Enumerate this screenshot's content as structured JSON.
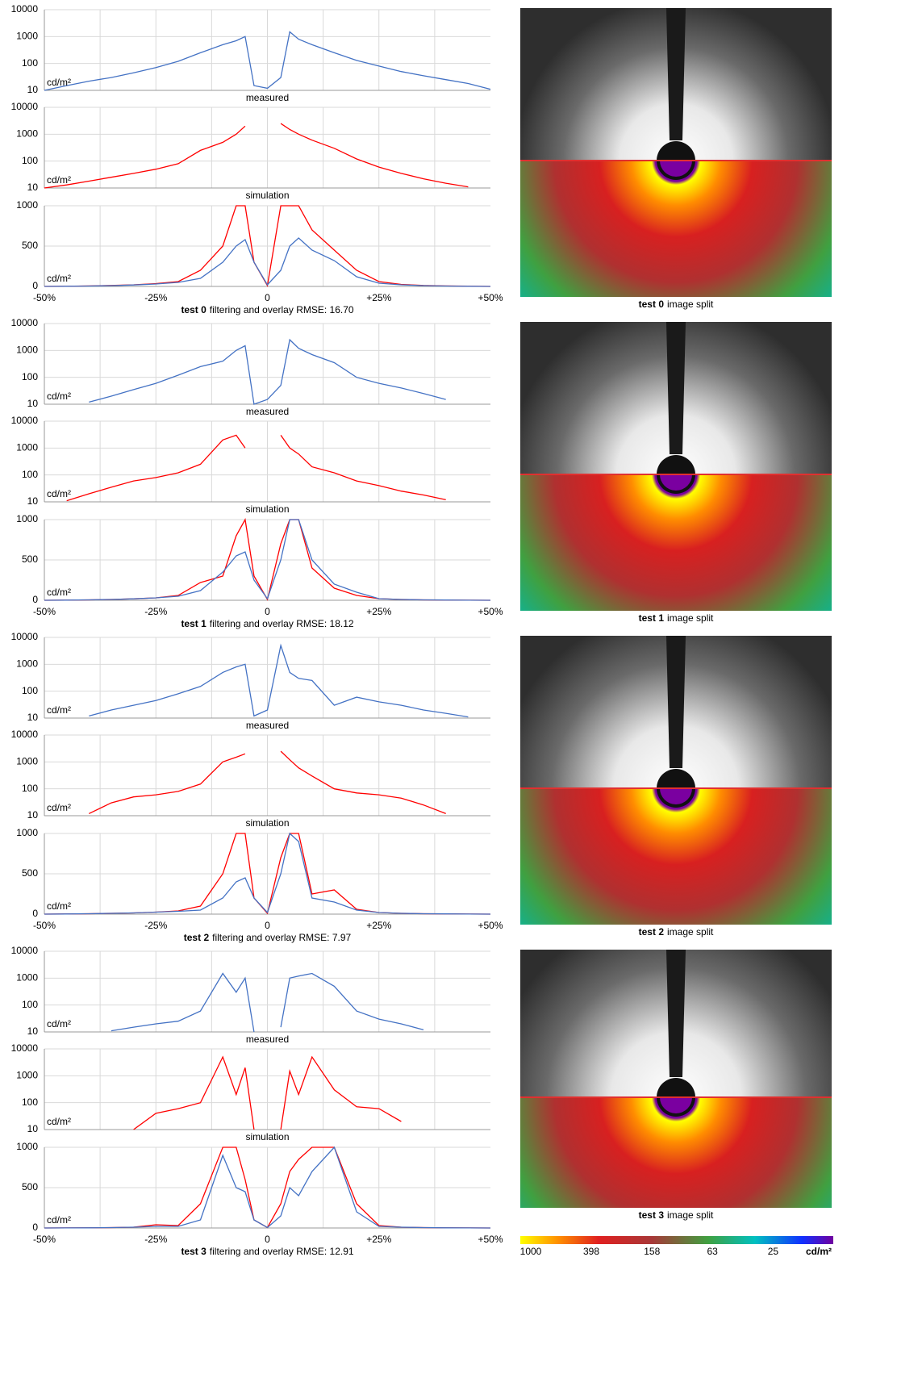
{
  "chart_data": [
    {
      "type": "line",
      "log": true,
      "grid": true,
      "xlabel": "measured",
      "ylabel": "cd/m²",
      "xlim": [
        -50,
        50
      ],
      "ylim": [
        10,
        10000
      ],
      "yticks": [
        10,
        100,
        1000,
        10000
      ],
      "xgrid": [
        -37.5,
        -25,
        -12.5,
        0,
        12.5,
        25,
        37.5
      ],
      "x": [
        -50,
        -45,
        -40,
        -35,
        -30,
        -25,
        -20,
        -15,
        -10,
        -7,
        -5,
        -3,
        0,
        3,
        5,
        7,
        10,
        15,
        20,
        25,
        30,
        35,
        40,
        45,
        50
      ],
      "series": [
        {
          "color": "#4472c4",
          "values": [
            10,
            15,
            22,
            30,
            45,
            70,
            120,
            250,
            500,
            700,
            1000,
            15,
            12,
            30,
            1500,
            800,
            500,
            250,
            130,
            80,
            50,
            35,
            25,
            18,
            11
          ]
        }
      ]
    },
    {
      "type": "line",
      "log": true,
      "grid": true,
      "xlabel": "simulation",
      "ylabel": "cd/m²",
      "xlim": [
        -50,
        50
      ],
      "ylim": [
        10,
        10000
      ],
      "yticks": [
        10,
        100,
        1000,
        10000
      ],
      "xgrid": [
        -37.5,
        -25,
        -12.5,
        0,
        12.5,
        25,
        37.5
      ],
      "x": [
        -50,
        -45,
        -40,
        -35,
        -30,
        -25,
        -20,
        -15,
        -10,
        -7,
        -5,
        -3,
        0,
        3,
        5,
        7,
        10,
        15,
        20,
        25,
        30,
        35,
        40,
        45,
        50
      ],
      "series": [
        {
          "color": "#ff0000",
          "values": [
            10,
            13,
            18,
            25,
            35,
            50,
            80,
            250,
            500,
            1000,
            2000,
            null,
            null,
            2500,
            1500,
            1000,
            600,
            300,
            120,
            60,
            35,
            22,
            15,
            11,
            null
          ]
        }
      ]
    },
    {
      "type": "line",
      "log": false,
      "grid": true,
      "caption_bold": "test 0",
      "caption": "filtering and overlay RMSE: 16.70",
      "ylabel": "cd/m²",
      "xlim": [
        -50,
        50
      ],
      "ylim": [
        0,
        1000
      ],
      "yticks": [
        0,
        500,
        1000
      ],
      "xgrid": [
        -37.5,
        -25,
        -12.5,
        0,
        12.5,
        25,
        37.5
      ],
      "xticks": [
        {
          "value": -50,
          "label": "-50%"
        },
        {
          "value": -25,
          "label": "-25%"
        },
        0,
        {
          "value": 25,
          "label": "+25%"
        },
        {
          "value": 50,
          "label": "+50%"
        }
      ],
      "x": [
        -50,
        -45,
        -40,
        -35,
        -30,
        -25,
        -20,
        -15,
        -10,
        -7,
        -5,
        -3,
        0,
        3,
        5,
        7,
        10,
        15,
        20,
        25,
        30,
        35,
        40,
        45,
        50
      ],
      "series": [
        {
          "color": "#ff0000",
          "values": [
            0,
            2,
            6,
            12,
            20,
            35,
            60,
            200,
            500,
            1000,
            1000,
            300,
            10,
            1000,
            1000,
            1000,
            700,
            450,
            200,
            60,
            25,
            12,
            6,
            3,
            0
          ]
        },
        {
          "color": "#4472c4",
          "values": [
            0,
            2,
            5,
            10,
            18,
            30,
            50,
            100,
            300,
            500,
            580,
            300,
            20,
            200,
            500,
            600,
            450,
            320,
            120,
            40,
            20,
            10,
            5,
            2,
            0
          ]
        }
      ]
    },
    {
      "type": "line",
      "log": true,
      "grid": true,
      "xlabel": "measured",
      "ylabel": "cd/m²",
      "xlim": [
        -50,
        50
      ],
      "ylim": [
        10,
        10000
      ],
      "yticks": [
        10,
        100,
        1000,
        10000
      ],
      "xgrid": [
        -37.5,
        -25,
        -12.5,
        0,
        12.5,
        25,
        37.5
      ],
      "x": [
        -50,
        -45,
        -40,
        -35,
        -30,
        -25,
        -20,
        -15,
        -10,
        -7,
        -5,
        -3,
        0,
        3,
        5,
        7,
        10,
        15,
        20,
        25,
        30,
        35,
        40,
        45,
        50
      ],
      "series": [
        {
          "color": "#4472c4",
          "values": [
            null,
            null,
            12,
            20,
            35,
            60,
            120,
            250,
            400,
            1000,
            1500,
            10,
            15,
            50,
            2500,
            1200,
            700,
            350,
            100,
            60,
            40,
            25,
            15,
            null,
            null
          ]
        }
      ]
    },
    {
      "type": "line",
      "log": true,
      "grid": true,
      "xlabel": "simulation",
      "ylabel": "cd/m²",
      "xlim": [
        -50,
        50
      ],
      "ylim": [
        10,
        10000
      ],
      "yticks": [
        10,
        100,
        1000,
        10000
      ],
      "xgrid": [
        -37.5,
        -25,
        -12.5,
        0,
        12.5,
        25,
        37.5
      ],
      "x": [
        -50,
        -45,
        -40,
        -35,
        -30,
        -25,
        -20,
        -15,
        -10,
        -7,
        -5,
        -3,
        0,
        3,
        5,
        7,
        10,
        15,
        20,
        25,
        30,
        35,
        40,
        45,
        50
      ],
      "series": [
        {
          "color": "#ff0000",
          "values": [
            null,
            11,
            20,
            35,
            60,
            80,
            120,
            250,
            2000,
            3000,
            1000,
            null,
            null,
            3000,
            1000,
            600,
            200,
            120,
            60,
            40,
            25,
            18,
            12,
            null,
            null
          ]
        }
      ]
    },
    {
      "type": "line",
      "log": false,
      "grid": true,
      "caption_bold": "test 1",
      "caption": "filtering and overlay RMSE: 18.12",
      "ylabel": "cd/m²",
      "xlim": [
        -50,
        50
      ],
      "ylim": [
        0,
        1000
      ],
      "yticks": [
        0,
        500,
        1000
      ],
      "xgrid": [
        -37.5,
        -25,
        -12.5,
        0,
        12.5,
        25,
        37.5
      ],
      "xticks": [
        {
          "value": -50,
          "label": "-50%"
        },
        {
          "value": -25,
          "label": "-25%"
        },
        0,
        {
          "value": 25,
          "label": "+25%"
        },
        {
          "value": 50,
          "label": "+50%"
        }
      ],
      "x": [
        -50,
        -45,
        -40,
        -35,
        -30,
        -25,
        -20,
        -15,
        -10,
        -7,
        -5,
        -3,
        0,
        3,
        5,
        7,
        10,
        15,
        20,
        25,
        30,
        35,
        40,
        45,
        50
      ],
      "series": [
        {
          "color": "#ff0000",
          "values": [
            0,
            2,
            5,
            10,
            18,
            30,
            60,
            220,
            300,
            800,
            1000,
            300,
            10,
            700,
            1000,
            1000,
            400,
            150,
            60,
            20,
            10,
            5,
            3,
            1,
            0
          ]
        },
        {
          "color": "#4472c4",
          "values": [
            0,
            2,
            5,
            10,
            18,
            30,
            50,
            120,
            350,
            550,
            600,
            250,
            20,
            500,
            1000,
            1000,
            500,
            200,
            100,
            20,
            10,
            5,
            3,
            1,
            0
          ]
        }
      ]
    },
    {
      "type": "line",
      "log": true,
      "grid": true,
      "xlabel": "measured",
      "ylabel": "cd/m²",
      "xlim": [
        -50,
        50
      ],
      "ylim": [
        10,
        10000
      ],
      "yticks": [
        10,
        100,
        1000,
        10000
      ],
      "xgrid": [
        -37.5,
        -25,
        -12.5,
        0,
        12.5,
        25,
        37.5
      ],
      "x": [
        -50,
        -45,
        -40,
        -35,
        -30,
        -25,
        -20,
        -15,
        -10,
        -7,
        -5,
        -3,
        0,
        3,
        5,
        7,
        10,
        15,
        20,
        25,
        30,
        35,
        40,
        45,
        50
      ],
      "series": [
        {
          "color": "#4472c4",
          "values": [
            null,
            null,
            12,
            20,
            30,
            45,
            80,
            150,
            500,
            800,
            1000,
            12,
            20,
            5000,
            500,
            300,
            250,
            30,
            60,
            40,
            30,
            20,
            15,
            11,
            null
          ]
        }
      ]
    },
    {
      "type": "line",
      "log": true,
      "grid": true,
      "xlabel": "simulation",
      "ylabel": "cd/m²",
      "xlim": [
        -50,
        50
      ],
      "ylim": [
        10,
        10000
      ],
      "yticks": [
        10,
        100,
        1000,
        10000
      ],
      "xgrid": [
        -37.5,
        -25,
        -12.5,
        0,
        12.5,
        25,
        37.5
      ],
      "x": [
        -50,
        -45,
        -40,
        -35,
        -30,
        -25,
        -20,
        -15,
        -10,
        -7,
        -5,
        -3,
        0,
        3,
        5,
        7,
        10,
        15,
        20,
        25,
        30,
        35,
        40,
        45,
        50
      ],
      "series": [
        {
          "color": "#ff0000",
          "values": [
            null,
            null,
            12,
            30,
            50,
            60,
            80,
            150,
            1000,
            1500,
            2000,
            null,
            null,
            2500,
            1200,
            600,
            300,
            100,
            70,
            60,
            45,
            25,
            12,
            null,
            null
          ]
        }
      ]
    },
    {
      "type": "line",
      "log": false,
      "grid": true,
      "caption_bold": "test 2",
      "caption": "filtering and overlay RMSE: 7.97",
      "ylabel": "cd/m²",
      "xlim": [
        -50,
        50
      ],
      "ylim": [
        0,
        1000
      ],
      "yticks": [
        0,
        500,
        1000
      ],
      "xgrid": [
        -37.5,
        -25,
        -12.5,
        0,
        12.5,
        25,
        37.5
      ],
      "xticks": [
        {
          "value": -50,
          "label": "-50%"
        },
        {
          "value": -25,
          "label": "-25%"
        },
        0,
        {
          "value": 25,
          "label": "+25%"
        },
        {
          "value": 50,
          "label": "+50%"
        }
      ],
      "x": [
        -50,
        -45,
        -40,
        -35,
        -30,
        -25,
        -20,
        -15,
        -10,
        -7,
        -5,
        -3,
        0,
        3,
        5,
        7,
        10,
        15,
        20,
        25,
        30,
        35,
        40,
        45,
        50
      ],
      "series": [
        {
          "color": "#ff0000",
          "values": [
            0,
            2,
            5,
            10,
            15,
            25,
            40,
            100,
            500,
            1000,
            1000,
            200,
            10,
            700,
            1000,
            1000,
            250,
            300,
            60,
            20,
            10,
            5,
            3,
            1,
            0
          ]
        },
        {
          "color": "#4472c4",
          "values": [
            0,
            2,
            5,
            10,
            15,
            25,
            35,
            50,
            200,
            400,
            450,
            200,
            20,
            500,
            1000,
            900,
            200,
            150,
            50,
            20,
            10,
            5,
            3,
            1,
            0
          ]
        }
      ]
    },
    {
      "type": "line",
      "log": true,
      "grid": true,
      "xlabel": "measured",
      "ylabel": "cd/m²",
      "xlim": [
        -50,
        50
      ],
      "ylim": [
        10,
        10000
      ],
      "yticks": [
        10,
        100,
        1000,
        10000
      ],
      "xgrid": [
        -37.5,
        -25,
        -12.5,
        0,
        12.5,
        25,
        37.5
      ],
      "x": [
        -50,
        -45,
        -40,
        -35,
        -30,
        -25,
        -20,
        -15,
        -10,
        -7,
        -5,
        -3,
        0,
        3,
        5,
        7,
        10,
        15,
        20,
        25,
        30,
        35,
        40,
        45,
        50
      ],
      "series": [
        {
          "color": "#4472c4",
          "values": [
            null,
            null,
            null,
            11,
            15,
            20,
            25,
            60,
            1500,
            300,
            1000,
            10,
            null,
            15,
            1000,
            1200,
            1500,
            500,
            60,
            30,
            20,
            12,
            null,
            null,
            null
          ]
        }
      ]
    },
    {
      "type": "line",
      "log": true,
      "grid": true,
      "xlabel": "simulation",
      "ylabel": "cd/m²",
      "xlim": [
        -50,
        50
      ],
      "ylim": [
        10,
        10000
      ],
      "yticks": [
        10,
        100,
        1000,
        10000
      ],
      "xgrid": [
        -37.5,
        -25,
        -12.5,
        0,
        12.5,
        25,
        37.5
      ],
      "x": [
        -50,
        -45,
        -40,
        -35,
        -30,
        -25,
        -20,
        -15,
        -10,
        -7,
        -5,
        -3,
        0,
        3,
        5,
        7,
        10,
        15,
        20,
        25,
        30,
        35,
        40,
        45,
        50
      ],
      "series": [
        {
          "color": "#ff0000",
          "values": [
            null,
            null,
            null,
            null,
            10,
            40,
            60,
            100,
            5000,
            200,
            2000,
            10,
            null,
            10,
            1500,
            200,
            5000,
            300,
            70,
            60,
            20,
            null,
            null,
            null,
            null
          ]
        }
      ]
    },
    {
      "type": "line",
      "log": false,
      "grid": true,
      "caption_bold": "test 3",
      "caption": "filtering and overlay RMSE: 12.91",
      "ylabel": "cd/m²",
      "xlim": [
        -50,
        50
      ],
      "ylim": [
        0,
        1000
      ],
      "yticks": [
        0,
        500,
        1000
      ],
      "xgrid": [
        -37.5,
        -25,
        -12.5,
        0,
        12.5,
        25,
        37.5
      ],
      "xticks": [
        {
          "value": -50,
          "label": "-50%"
        },
        {
          "value": -25,
          "label": "-25%"
        },
        0,
        {
          "value": 25,
          "label": "+25%"
        },
        {
          "value": 50,
          "label": "+50%"
        }
      ],
      "x": [
        -50,
        -45,
        -40,
        -35,
        -30,
        -25,
        -20,
        -15,
        -10,
        -7,
        -5,
        -3,
        0,
        3,
        5,
        7,
        10,
        15,
        20,
        25,
        30,
        35,
        40,
        45,
        50
      ],
      "series": [
        {
          "color": "#ff0000",
          "values": [
            0,
            1,
            2,
            5,
            10,
            40,
            30,
            300,
            1000,
            1000,
            600,
            100,
            5,
            300,
            700,
            850,
            1000,
            1000,
            300,
            30,
            10,
            5,
            2,
            1,
            0
          ]
        },
        {
          "color": "#4472c4",
          "values": [
            0,
            1,
            2,
            5,
            10,
            20,
            20,
            100,
            900,
            500,
            450,
            100,
            5,
            150,
            500,
            400,
            700,
            1000,
            200,
            20,
            10,
            5,
            2,
            1,
            0
          ]
        }
      ]
    }
  ],
  "images": [
    {
      "caption_bold": "test 0",
      "caption": "image split"
    },
    {
      "caption_bold": "test 1",
      "caption": "image split"
    },
    {
      "caption_bold": "test 2",
      "caption": "image split"
    },
    {
      "caption_bold": "test 3",
      "caption": "image split"
    }
  ],
  "colorbar": {
    "ticks": [
      1000,
      398,
      158,
      63,
      25
    ],
    "lim": [
      1000,
      10
    ],
    "unit": "cd/m²"
  }
}
